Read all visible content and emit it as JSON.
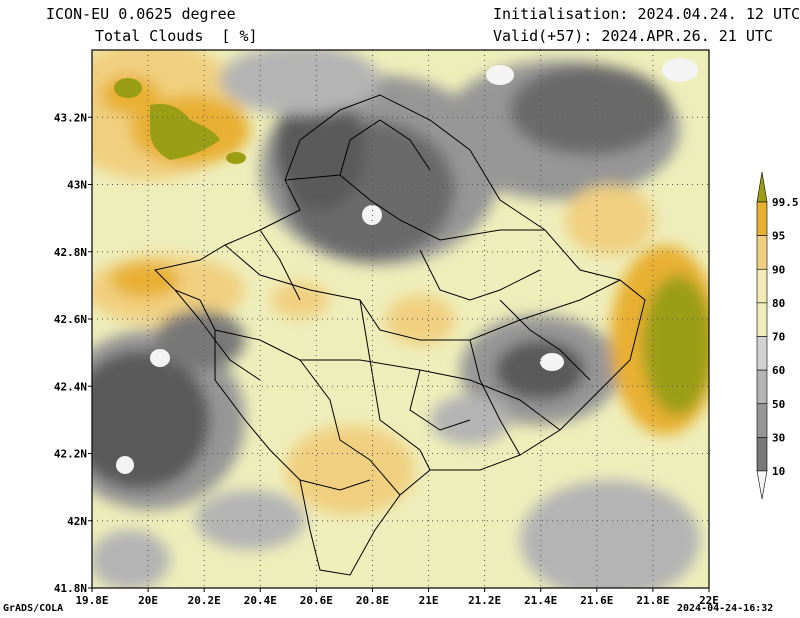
{
  "header": {
    "model": "ICON-EU 0.0625 degree",
    "variable": "Total Clouds  [ %]",
    "init": "Initialisation: 2024.04.24. 12 UTC",
    "valid": "Valid(+57): 2024.APR.26. 21 UTC"
  },
  "map": {
    "lon_range": [
      19.8,
      22.0
    ],
    "lat_range": [
      41.8,
      43.4
    ],
    "x_ticks": [
      "19.8E",
      "20E",
      "20.2E",
      "20.4E",
      "20.6E",
      "20.8E",
      "21E",
      "21.2E",
      "21.4E",
      "21.6E",
      "21.8E",
      "22E"
    ],
    "y_ticks": [
      "43.2N",
      "43N",
      "42.8N",
      "42.6N",
      "42.4N",
      "42.2N",
      "42N",
      "41.8N"
    ],
    "grid": "dotted"
  },
  "colorbar": {
    "labels": [
      "99.5",
      "95",
      "90",
      "80",
      "70",
      "60",
      "50",
      "30",
      "10"
    ],
    "colors": [
      "#9a9e14",
      "#e8b030",
      "#f0d080",
      "#f4eab4",
      "#eeeebb",
      "#d2d2d2",
      "#b4b4b4",
      "#969696",
      "#787878",
      "#5a5a5a",
      "#f4f4f4"
    ]
  },
  "footer": {
    "left": "GrADS/COLA",
    "right": "2024-04-24-16:32"
  }
}
